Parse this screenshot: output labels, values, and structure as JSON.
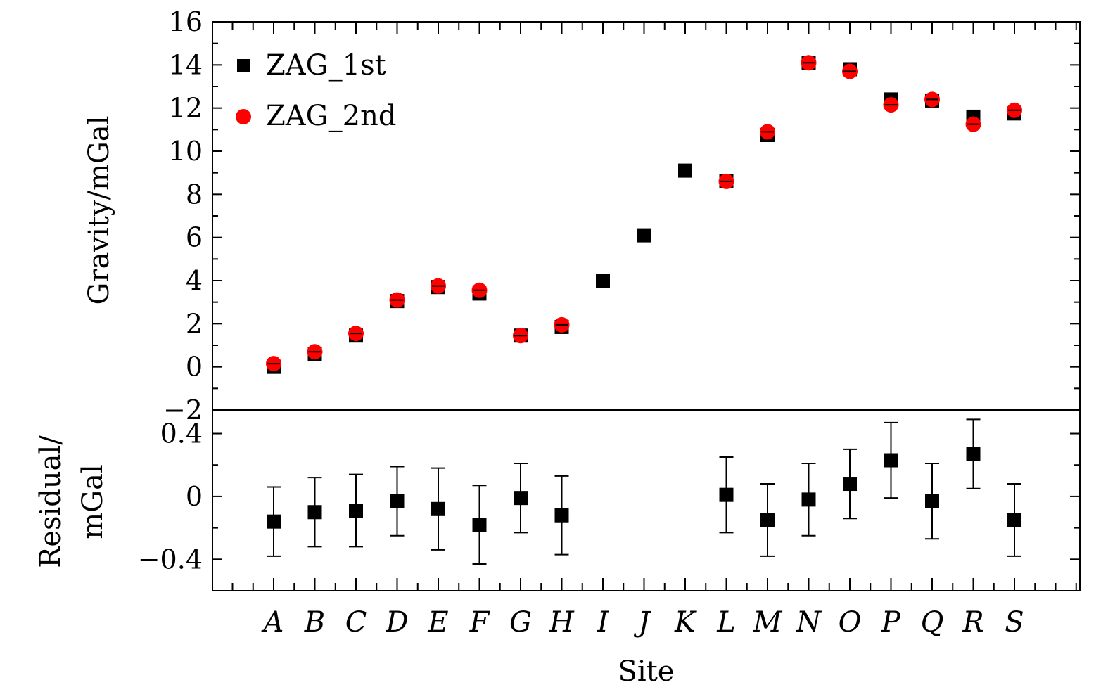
{
  "chart_data": [
    {
      "type": "scatter",
      "panel": "top",
      "ylabel": "Gravity/mGal",
      "ylim": [
        -2,
        16
      ],
      "yticks": [
        -2,
        0,
        2,
        4,
        6,
        8,
        10,
        12,
        14,
        16
      ],
      "ytick_labels": [
        "−2",
        "0",
        "2",
        "4",
        "6",
        "8",
        "10",
        "12",
        "14",
        "16"
      ],
      "categories": [
        "A",
        "B",
        "C",
        "D",
        "E",
        "F",
        "G",
        "H",
        "I",
        "J",
        "K",
        "L",
        "M",
        "N",
        "O",
        "P",
        "Q",
        "R",
        "S"
      ],
      "legend_position": "top-left",
      "series": [
        {
          "name": "ZAG_1st",
          "marker": "square",
          "color": "#000000",
          "values": [
            0.0,
            0.6,
            1.45,
            3.05,
            3.7,
            3.4,
            1.45,
            1.85,
            4.0,
            6.1,
            9.1,
            8.6,
            10.75,
            14.1,
            13.8,
            12.4,
            12.35,
            11.6,
            11.75
          ]
        },
        {
          "name": "ZAG_2nd",
          "marker": "circle",
          "color": "#ff0000",
          "values": [
            0.15,
            0.7,
            1.55,
            3.1,
            3.75,
            3.55,
            1.45,
            1.95,
            null,
            null,
            null,
            8.6,
            10.9,
            14.1,
            13.7,
            12.15,
            12.4,
            11.25,
            11.9
          ]
        }
      ]
    },
    {
      "type": "scatter",
      "panel": "bottom",
      "ylabel_lines": [
        "Residual/",
        "mGal"
      ],
      "xlabel": "Site",
      "ylim": [
        -0.6,
        0.55
      ],
      "yticks": [
        -0.4,
        0,
        0.4
      ],
      "ytick_labels": [
        "−0.4",
        "0",
        "0.4"
      ],
      "categories": [
        "A",
        "B",
        "C",
        "D",
        "E",
        "F",
        "G",
        "H",
        "I",
        "J",
        "K",
        "L",
        "M",
        "N",
        "O",
        "P",
        "Q",
        "R",
        "S"
      ],
      "series": [
        {
          "marker": "square",
          "color": "#000000",
          "values": [
            -0.16,
            -0.1,
            -0.09,
            -0.03,
            -0.08,
            -0.18,
            -0.01,
            -0.12,
            null,
            null,
            null,
            0.01,
            -0.15,
            -0.02,
            0.08,
            0.23,
            -0.03,
            0.27,
            -0.15
          ],
          "errors": [
            0.22,
            0.22,
            0.23,
            0.22,
            0.26,
            0.25,
            0.22,
            0.25,
            null,
            null,
            null,
            0.24,
            0.23,
            0.23,
            0.22,
            0.24,
            0.24,
            0.22,
            0.23
          ]
        }
      ]
    }
  ]
}
